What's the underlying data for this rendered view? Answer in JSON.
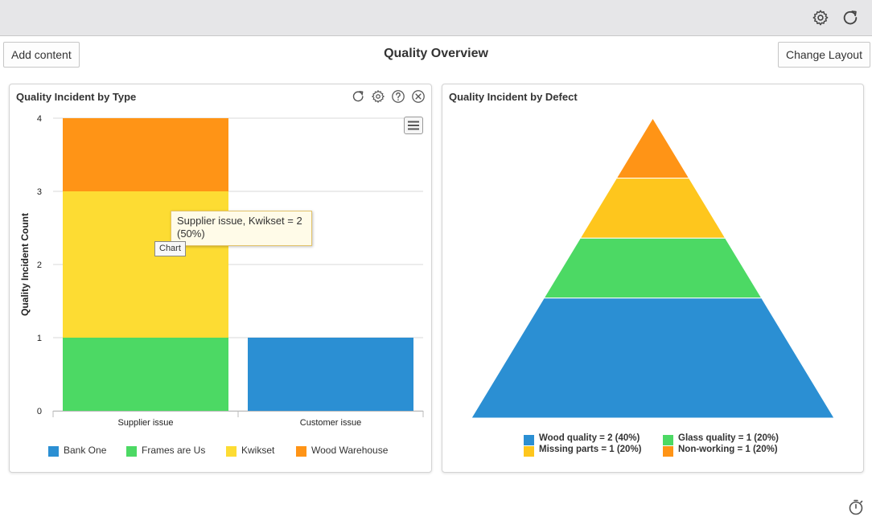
{
  "toolbar": {
    "settings_icon": "gear-icon",
    "refresh_icon": "refresh-icon"
  },
  "header": {
    "add_content_label": "Add content",
    "title": "Quality Overview",
    "change_layout_label": "Change Layout"
  },
  "colors": {
    "bank_one": "#2b8fd3",
    "frames_are_us": "#4cd964",
    "kwikset": "#fddc33",
    "wood_warehouse": "#ff9416",
    "pyramid_top": "#ff9416",
    "pyramid_2": "#fec61d",
    "pyramid_3": "#4cd964",
    "pyramid_base": "#2b8fd3"
  },
  "panel_type": {
    "title": "Quality Incident by Type",
    "icons": [
      "refresh-icon",
      "gear-icon",
      "help-icon",
      "close-icon"
    ],
    "menu_icon": "hamburger-menu-icon",
    "tooltip_line1": "Supplier issue, Kwikset = 2",
    "tooltip_line2": "(50%)",
    "chart_tag": "Chart",
    "legend": [
      "Bank One",
      "Frames are Us",
      "Kwikset",
      "Wood Warehouse"
    ]
  },
  "panel_defect": {
    "title": "Quality Incident by Defect",
    "legend": [
      "Wood quality = 2 (40%)",
      "Glass quality = 1 (20%)",
      "Missing parts = 1 (20%)",
      "Non-working = 1 (20%)"
    ]
  },
  "footer": {
    "timer_icon": "stopwatch-icon"
  },
  "chart_data": [
    {
      "type": "bar",
      "stacked": true,
      "title": "Quality Incident by Type",
      "ylabel": "Quality Incident Count",
      "xlabel": "",
      "categories": [
        "Supplier issue",
        "Customer issue"
      ],
      "ylim": [
        0,
        4
      ],
      "yticks": [
        "0",
        "1",
        "2",
        "3",
        "4"
      ],
      "grid": true,
      "legend_position": "bottom",
      "series": [
        {
          "name": "Bank One",
          "values": [
            0,
            1
          ]
        },
        {
          "name": "Frames are Us",
          "values": [
            1,
            0
          ]
        },
        {
          "name": "Kwikset",
          "values": [
            2,
            0
          ]
        },
        {
          "name": "Wood Warehouse",
          "values": [
            1,
            0
          ]
        }
      ]
    },
    {
      "type": "pyramid",
      "title": "Quality Incident by Defect",
      "legend_position": "bottom",
      "values_top_to_bottom": [
        {
          "label": "Non-working",
          "value": 1
        },
        {
          "label": "Missing parts",
          "value": 1
        },
        {
          "label": "Glass quality",
          "value": 1
        },
        {
          "label": "Wood quality",
          "value": 2
        }
      ]
    }
  ]
}
